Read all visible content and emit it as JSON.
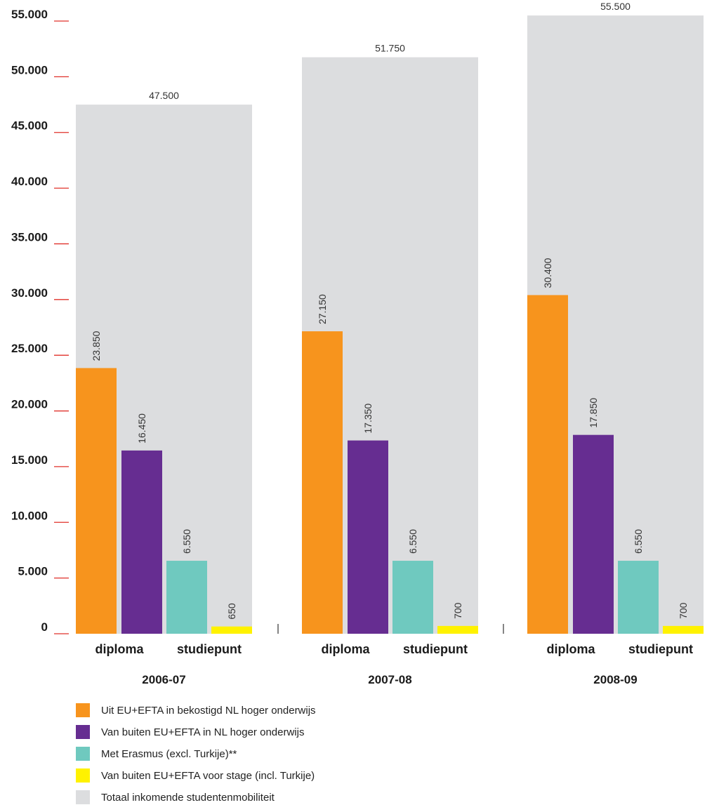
{
  "chart_data": {
    "type": "bar",
    "y_ticks": [
      "0",
      "5.000",
      "10.000",
      "15.000",
      "20.000",
      "25.000",
      "30.000",
      "35.000",
      "40.000",
      "45.000",
      "50.000",
      "55.000"
    ],
    "y_values": [
      0,
      5000,
      10000,
      15000,
      20000,
      25000,
      30000,
      35000,
      40000,
      45000,
      50000,
      55000
    ],
    "ylim": [
      0,
      55000
    ],
    "grid": false,
    "legend_placement": "bottom",
    "colors": {
      "eu_efta_diploma": "#f7941d",
      "outside_eu_efta": "#662d91",
      "erasmus": "#6fc9bf",
      "stage": "#fff200",
      "total": "#dcdddf",
      "tick_mark": "#e0312a"
    },
    "category_labels": [
      "diploma",
      "studiepunt"
    ],
    "groups": [
      {
        "year": "2006-07",
        "total": 47500,
        "total_label": "47.500",
        "values": [
          23850,
          16450,
          6550,
          650
        ],
        "value_labels": [
          "23.850",
          "16.450",
          "6.550",
          "650"
        ]
      },
      {
        "year": "2007-08",
        "total": 51750,
        "total_label": "51.750",
        "values": [
          27150,
          17350,
          6550,
          700
        ],
        "value_labels": [
          "27.150",
          "17.350",
          "6.550",
          "700"
        ]
      },
      {
        "year": "2008-09",
        "total": 55500,
        "total_label": "55.500",
        "values": [
          30400,
          17850,
          6550,
          700
        ],
        "value_labels": [
          "30.400",
          "17.850",
          "6.550",
          "700"
        ]
      }
    ],
    "series": [
      {
        "name": "Uit EU+EFTA in bekostigd NL hoger onderwijs",
        "color": "#f7941d"
      },
      {
        "name": "Van buiten EU+EFTA in NL hoger onderwijs",
        "color": "#662d91"
      },
      {
        "name": "Met Erasmus (excl. Turkije)**",
        "color": "#6fc9bf"
      },
      {
        "name": "Van buiten EU+EFTA voor stage (incl. Turkije)",
        "color": "#fff200"
      },
      {
        "name": "Totaal inkomende studentenmobiliteit",
        "color": "#dcdddf"
      }
    ]
  }
}
